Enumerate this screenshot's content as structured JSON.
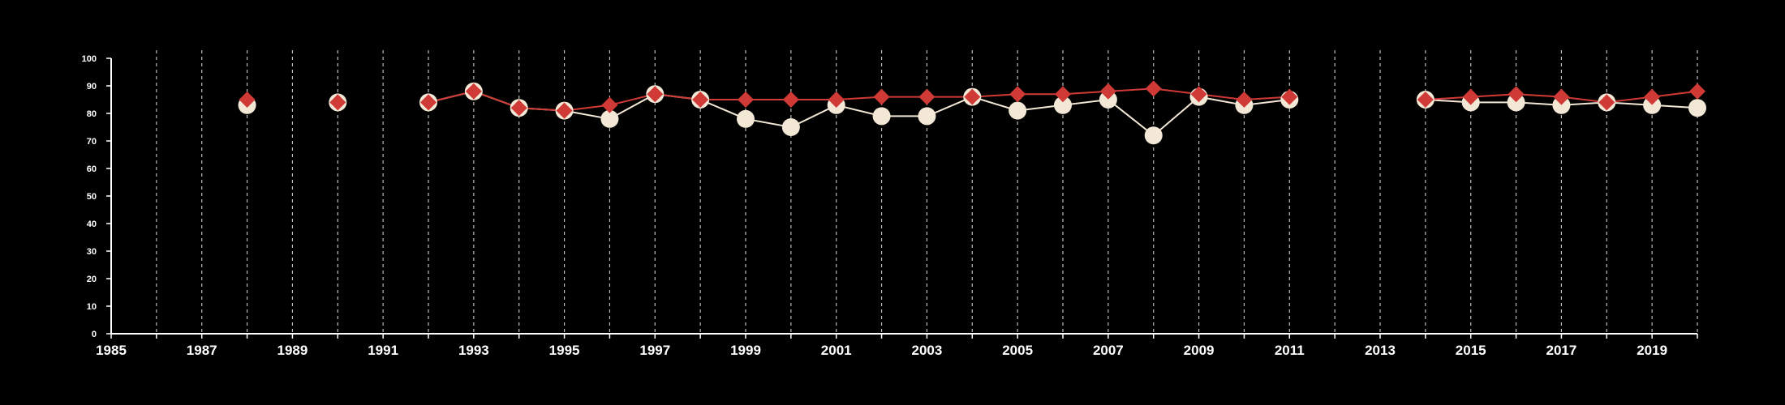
{
  "chart_data": {
    "type": "line",
    "title": "",
    "xlabel": "",
    "ylabel": "",
    "xlim": [
      1985,
      2020
    ],
    "ylim": [
      0,
      100
    ],
    "x_ticks": [
      1985,
      1987,
      1989,
      1991,
      1993,
      1995,
      1997,
      1999,
      2001,
      2003,
      2005,
      2007,
      2009,
      2011,
      2013,
      2015,
      2017,
      2019
    ],
    "x_tick_labels": [
      "1985",
      "1987",
      "1989",
      "1991",
      "1993",
      "1995",
      "1997",
      "1999",
      "2001",
      "2003",
      "2005",
      "2007",
      "2009",
      "2011",
      "2013",
      "2015",
      "2017",
      "2019"
    ],
    "y_ticks": [
      0,
      10,
      20,
      30,
      40,
      50,
      60,
      70,
      80,
      90,
      100
    ],
    "y_tick_labels": [
      "0",
      "10",
      "20",
      "30",
      "40",
      "50",
      "60",
      "70",
      "80",
      "90",
      "100"
    ],
    "grid": "vertical dashed lines at every year",
    "legend": "none",
    "background_color": "#000000",
    "axis_color": "#ffffff",
    "x": [
      1988,
      1990,
      1992,
      1993,
      1994,
      1995,
      1996,
      1997,
      1998,
      1999,
      2000,
      2001,
      2002,
      2003,
      2004,
      2005,
      2006,
      2007,
      2008,
      2009,
      2010,
      2011,
      2014,
      2015,
      2016,
      2017,
      2018,
      2019,
      2020
    ],
    "series": [
      {
        "marker": "circle",
        "color": "#f3e7d6",
        "values": [
          83,
          84,
          84,
          88,
          82,
          81,
          78,
          87,
          85,
          78,
          75,
          83,
          79,
          79,
          86,
          81,
          83,
          85,
          72,
          86,
          83,
          85,
          85,
          84,
          84,
          83,
          84,
          83,
          82
        ]
      },
      {
        "marker": "diamond",
        "color": "#d03a36",
        "values": [
          85,
          84,
          84,
          88,
          82,
          81,
          83,
          87,
          85,
          85,
          85,
          85,
          86,
          86,
          86,
          87,
          87,
          88,
          89,
          87,
          85,
          86,
          85,
          86,
          87,
          86,
          84,
          86,
          88
        ]
      }
    ]
  }
}
